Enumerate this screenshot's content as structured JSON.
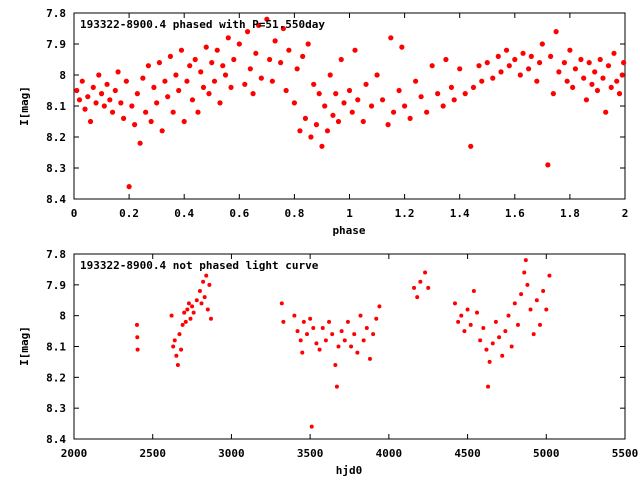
{
  "chart_data": [
    {
      "type": "scatter",
      "title": "193322-8900.4 phased with P=51.550day",
      "xlabel": "phase",
      "ylabel": "I[mag]",
      "xlim": [
        0,
        2
      ],
      "ylim": [
        8.4,
        7.8
      ],
      "y_inverted": true,
      "grid": false,
      "x_ticks": [
        "0",
        "0.2",
        "0.4",
        "0.6",
        "0.8",
        "1",
        "1.2",
        "1.4",
        "1.6",
        "1.8",
        "2"
      ],
      "y_ticks": [
        "7.8",
        "7.9",
        "8",
        "8.1",
        "8.2",
        "8.3",
        "8.4"
      ],
      "marker_color": "#ff0000",
      "points": [
        [
          0.01,
          8.05
        ],
        [
          0.02,
          8.08
        ],
        [
          0.03,
          8.02
        ],
        [
          0.04,
          8.11
        ],
        [
          0.05,
          8.07
        ],
        [
          0.06,
          8.15
        ],
        [
          0.07,
          8.04
        ],
        [
          0.08,
          8.09
        ],
        [
          0.09,
          8.0
        ],
        [
          0.1,
          8.06
        ],
        [
          0.11,
          8.1
        ],
        [
          0.12,
          8.03
        ],
        [
          0.13,
          8.08
        ],
        [
          0.14,
          8.12
        ],
        [
          0.15,
          8.05
        ],
        [
          0.16,
          7.99
        ],
        [
          0.17,
          8.09
        ],
        [
          0.18,
          8.14
        ],
        [
          0.19,
          8.02
        ],
        [
          0.2,
          8.36
        ],
        [
          0.21,
          8.1
        ],
        [
          0.22,
          8.16
        ],
        [
          0.23,
          8.06
        ],
        [
          0.24,
          8.22
        ],
        [
          0.25,
          8.01
        ],
        [
          0.26,
          8.12
        ],
        [
          0.27,
          7.97
        ],
        [
          0.28,
          8.15
        ],
        [
          0.29,
          8.04
        ],
        [
          0.3,
          8.09
        ],
        [
          0.31,
          7.96
        ],
        [
          0.32,
          8.18
        ],
        [
          0.33,
          8.02
        ],
        [
          0.34,
          8.07
        ],
        [
          0.35,
          7.94
        ],
        [
          0.36,
          8.12
        ],
        [
          0.37,
          8.0
        ],
        [
          0.38,
          8.05
        ],
        [
          0.39,
          7.92
        ],
        [
          0.4,
          8.15
        ],
        [
          0.41,
          8.02
        ],
        [
          0.42,
          7.97
        ],
        [
          0.43,
          8.08
        ],
        [
          0.44,
          7.95
        ],
        [
          0.45,
          8.12
        ],
        [
          0.46,
          7.99
        ],
        [
          0.47,
          8.04
        ],
        [
          0.48,
          7.91
        ],
        [
          0.49,
          8.06
        ],
        [
          0.5,
          7.96
        ],
        [
          0.51,
          8.02
        ],
        [
          0.52,
          7.92
        ],
        [
          0.53,
          8.09
        ],
        [
          0.54,
          7.97
        ],
        [
          0.55,
          8.0
        ],
        [
          0.56,
          7.88
        ],
        [
          0.57,
          8.04
        ],
        [
          0.58,
          7.95
        ],
        [
          0.6,
          7.9
        ],
        [
          0.62,
          8.03
        ],
        [
          0.63,
          7.86
        ],
        [
          0.64,
          7.98
        ],
        [
          0.65,
          8.06
        ],
        [
          0.66,
          7.93
        ],
        [
          0.67,
          7.84
        ],
        [
          0.68,
          8.01
        ],
        [
          0.7,
          7.82
        ],
        [
          0.71,
          7.95
        ],
        [
          0.72,
          8.02
        ],
        [
          0.73,
          7.89
        ],
        [
          0.75,
          7.96
        ],
        [
          0.76,
          7.85
        ],
        [
          0.77,
          8.05
        ],
        [
          0.78,
          7.92
        ],
        [
          0.8,
          8.09
        ],
        [
          0.81,
          7.98
        ],
        [
          0.82,
          8.18
        ],
        [
          0.83,
          7.94
        ],
        [
          0.84,
          8.14
        ],
        [
          0.85,
          7.9
        ],
        [
          0.86,
          8.2
        ],
        [
          0.87,
          8.03
        ],
        [
          0.88,
          8.16
        ],
        [
          0.89,
          8.06
        ],
        [
          0.9,
          8.23
        ],
        [
          0.91,
          8.1
        ],
        [
          0.92,
          8.18
        ],
        [
          0.93,
          8.0
        ],
        [
          0.94,
          8.13
        ],
        [
          0.95,
          8.06
        ],
        [
          0.96,
          8.15
        ],
        [
          0.97,
          7.95
        ],
        [
          0.98,
          8.09
        ],
        [
          1.0,
          8.05
        ],
        [
          1.01,
          8.12
        ],
        [
          1.02,
          7.92
        ],
        [
          1.03,
          8.08
        ],
        [
          1.05,
          8.15
        ],
        [
          1.06,
          8.03
        ],
        [
          1.08,
          8.1
        ],
        [
          1.1,
          8.0
        ],
        [
          1.12,
          8.08
        ],
        [
          1.14,
          8.16
        ],
        [
          1.15,
          7.88
        ],
        [
          1.16,
          8.12
        ],
        [
          1.18,
          8.05
        ],
        [
          1.19,
          7.91
        ],
        [
          1.2,
          8.1
        ],
        [
          1.22,
          8.14
        ],
        [
          1.24,
          8.02
        ],
        [
          1.26,
          8.07
        ],
        [
          1.28,
          8.12
        ],
        [
          1.3,
          7.97
        ],
        [
          1.32,
          8.06
        ],
        [
          1.34,
          8.1
        ],
        [
          1.35,
          7.95
        ],
        [
          1.37,
          8.04
        ],
        [
          1.38,
          8.08
        ],
        [
          1.4,
          7.98
        ],
        [
          1.42,
          8.06
        ],
        [
          1.44,
          8.23
        ],
        [
          1.45,
          8.04
        ],
        [
          1.47,
          7.97
        ],
        [
          1.48,
          8.02
        ],
        [
          1.5,
          7.96
        ],
        [
          1.52,
          8.01
        ],
        [
          1.54,
          7.94
        ],
        [
          1.55,
          7.99
        ],
        [
          1.57,
          7.92
        ],
        [
          1.58,
          7.97
        ],
        [
          1.6,
          7.95
        ],
        [
          1.62,
          8.0
        ],
        [
          1.63,
          7.93
        ],
        [
          1.65,
          7.98
        ],
        [
          1.66,
          7.94
        ],
        [
          1.68,
          8.02
        ],
        [
          1.69,
          7.96
        ],
        [
          1.7,
          7.9
        ],
        [
          1.72,
          8.29
        ],
        [
          1.73,
          7.94
        ],
        [
          1.74,
          8.06
        ],
        [
          1.75,
          7.86
        ],
        [
          1.76,
          7.99
        ],
        [
          1.78,
          7.96
        ],
        [
          1.79,
          8.02
        ],
        [
          1.8,
          7.92
        ],
        [
          1.81,
          8.04
        ],
        [
          1.82,
          7.98
        ],
        [
          1.84,
          7.95
        ],
        [
          1.85,
          8.01
        ],
        [
          1.86,
          8.08
        ],
        [
          1.87,
          7.96
        ],
        [
          1.88,
          8.03
        ],
        [
          1.89,
          7.99
        ],
        [
          1.9,
          8.05
        ],
        [
          1.91,
          7.95
        ],
        [
          1.92,
          8.01
        ],
        [
          1.93,
          8.12
        ],
        [
          1.94,
          7.97
        ],
        [
          1.95,
          8.04
        ],
        [
          1.96,
          7.93
        ],
        [
          1.97,
          8.02
        ],
        [
          1.98,
          8.06
        ],
        [
          1.99,
          8.0
        ],
        [
          1.995,
          7.96
        ]
      ]
    },
    {
      "type": "scatter",
      "title": "193322-8900.4 not phased light curve",
      "xlabel": "hjd0",
      "ylabel": "I[mag]",
      "xlim": [
        2000,
        5500
      ],
      "ylim": [
        8.4,
        7.8
      ],
      "y_inverted": true,
      "grid": false,
      "x_ticks": [
        "2000",
        "2500",
        "3000",
        "3500",
        "4000",
        "4500",
        "5000",
        "5500"
      ],
      "y_ticks": [
        "7.8",
        "7.9",
        "8",
        "8.1",
        "8.2",
        "8.3",
        "8.4"
      ],
      "marker_color": "#ff0000",
      "points": [
        [
          2400,
          8.03
        ],
        [
          2402,
          8.07
        ],
        [
          2404,
          8.11
        ],
        [
          2620,
          8.0
        ],
        [
          2630,
          8.1
        ],
        [
          2640,
          8.08
        ],
        [
          2650,
          8.13
        ],
        [
          2660,
          8.16
        ],
        [
          2670,
          8.06
        ],
        [
          2680,
          8.11
        ],
        [
          2690,
          8.03
        ],
        [
          2700,
          7.99
        ],
        [
          2710,
          8.02
        ],
        [
          2720,
          7.98
        ],
        [
          2730,
          7.96
        ],
        [
          2740,
          8.01
        ],
        [
          2750,
          7.97
        ],
        [
          2760,
          7.99
        ],
        [
          2780,
          7.95
        ],
        [
          2800,
          7.92
        ],
        [
          2810,
          7.96
        ],
        [
          2820,
          7.89
        ],
        [
          2830,
          7.94
        ],
        [
          2840,
          7.87
        ],
        [
          2850,
          7.98
        ],
        [
          2860,
          7.9
        ],
        [
          2870,
          8.01
        ],
        [
          3320,
          7.96
        ],
        [
          3330,
          8.02
        ],
        [
          3400,
          8.0
        ],
        [
          3420,
          8.05
        ],
        [
          3440,
          8.08
        ],
        [
          3450,
          8.12
        ],
        [
          3460,
          8.02
        ],
        [
          3480,
          8.06
        ],
        [
          3500,
          8.01
        ],
        [
          3510,
          8.36
        ],
        [
          3520,
          8.04
        ],
        [
          3540,
          8.09
        ],
        [
          3560,
          8.11
        ],
        [
          3580,
          8.04
        ],
        [
          3600,
          8.08
        ],
        [
          3620,
          8.02
        ],
        [
          3640,
          8.06
        ],
        [
          3660,
          8.16
        ],
        [
          3670,
          8.23
        ],
        [
          3680,
          8.1
        ],
        [
          3700,
          8.05
        ],
        [
          3720,
          8.08
        ],
        [
          3740,
          8.02
        ],
        [
          3760,
          8.1
        ],
        [
          3780,
          8.06
        ],
        [
          3800,
          8.12
        ],
        [
          3820,
          8.0
        ],
        [
          3840,
          8.08
        ],
        [
          3860,
          8.04
        ],
        [
          3880,
          8.14
        ],
        [
          3900,
          8.06
        ],
        [
          3920,
          8.01
        ],
        [
          3940,
          7.97
        ],
        [
          4160,
          7.91
        ],
        [
          4180,
          7.94
        ],
        [
          4200,
          7.89
        ],
        [
          4230,
          7.86
        ],
        [
          4250,
          7.91
        ],
        [
          4420,
          7.96
        ],
        [
          4440,
          8.02
        ],
        [
          4460,
          8.0
        ],
        [
          4480,
          8.05
        ],
        [
          4500,
          7.98
        ],
        [
          4520,
          8.03
        ],
        [
          4540,
          7.92
        ],
        [
          4560,
          7.99
        ],
        [
          4580,
          8.08
        ],
        [
          4600,
          8.04
        ],
        [
          4620,
          8.11
        ],
        [
          4630,
          8.23
        ],
        [
          4640,
          8.15
        ],
        [
          4660,
          8.09
        ],
        [
          4680,
          8.02
        ],
        [
          4700,
          8.07
        ],
        [
          4720,
          8.13
        ],
        [
          4740,
          8.05
        ],
        [
          4760,
          8.0
        ],
        [
          4780,
          8.1
        ],
        [
          4800,
          7.96
        ],
        [
          4820,
          8.03
        ],
        [
          4840,
          7.93
        ],
        [
          4860,
          7.86
        ],
        [
          4870,
          7.82
        ],
        [
          4880,
          7.9
        ],
        [
          4900,
          7.98
        ],
        [
          4920,
          8.06
        ],
        [
          4940,
          7.95
        ],
        [
          4960,
          8.03
        ],
        [
          4980,
          7.92
        ],
        [
          5000,
          7.98
        ],
        [
          5020,
          7.87
        ]
      ]
    }
  ]
}
